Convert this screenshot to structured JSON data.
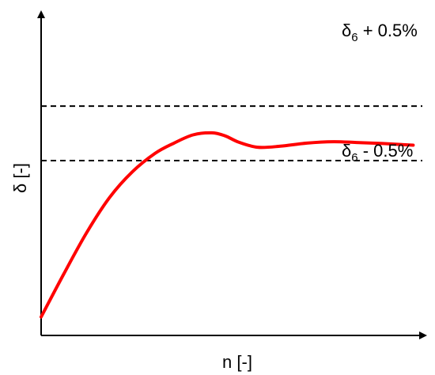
{
  "chart_data": {
    "type": "line",
    "xlabel": "n [-]",
    "ylabel": "δ [-]",
    "grid": false,
    "xlim": [
      0,
      10
    ],
    "ylim": [
      0,
      10
    ],
    "series": [
      {
        "color": "#ff0000",
        "x": [
          0,
          0.6,
          1.2,
          1.8,
          2.4,
          3.0,
          3.5,
          4.0,
          4.5,
          4.85,
          5.2,
          5.7,
          6.3,
          7.0,
          7.7,
          8.3,
          9.0,
          9.8
        ],
        "y": [
          0.9,
          3.0,
          5.0,
          6.7,
          7.95,
          8.85,
          9.35,
          9.75,
          9.85,
          9.7,
          9.4,
          9.15,
          9.2,
          9.35,
          9.42,
          9.38,
          9.33,
          9.25
        ]
      }
    ],
    "reference_lines": [
      {
        "label_base": "δ",
        "label_sub": "6",
        "label_suffix": " + 0.5%",
        "y": 11.15,
        "style": "dashed"
      },
      {
        "label_base": "δ",
        "label_sub": "6",
        "label_suffix": " - 0.5%",
        "y": 8.5,
        "style": "dashed"
      }
    ]
  }
}
